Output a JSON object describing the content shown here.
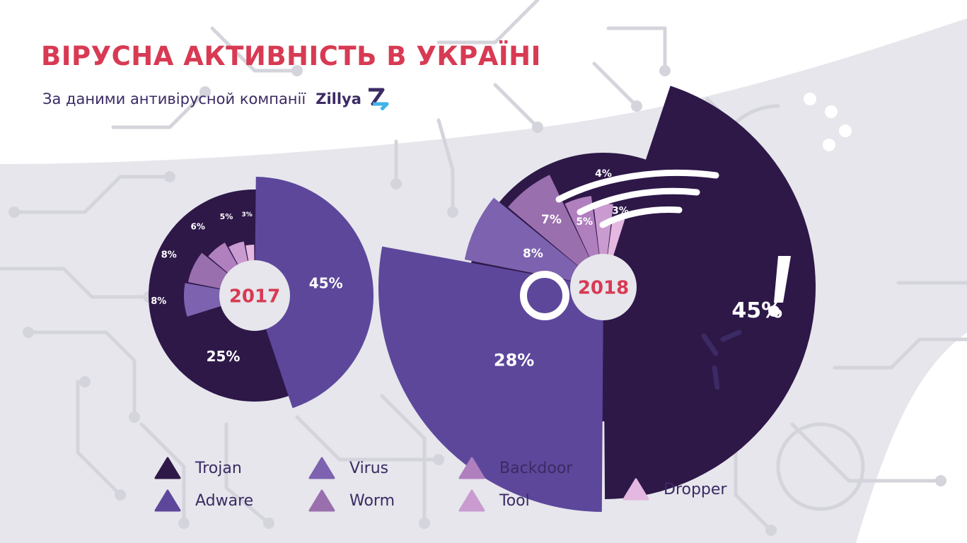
{
  "header": {
    "title": "ВІРУСНА АКТИВНІСТЬ В УКРАЇНІ",
    "subtitle": "За даними антивірусной компанії",
    "brand": "Zillya"
  },
  "colors": {
    "Trojan": "#2e1848",
    "Adware": "#5d479b",
    "Virus": "#7d62b0",
    "Worm": "#9a6fae",
    "Backdoor": "#b07fbe",
    "Tool": "#c99bd0",
    "Dropper": "#e4b8e0",
    "accent": "#d83a53"
  },
  "chart_data": [
    {
      "type": "pie",
      "label": "2017",
      "slices": [
        {
          "name": "Adware",
          "value": 45,
          "label": "45%"
        },
        {
          "name": "Trojan",
          "value": 25,
          "label": "25%"
        },
        {
          "name": "Virus",
          "value": 8,
          "label": "8%"
        },
        {
          "name": "Worm",
          "value": 8,
          "label": "8%"
        },
        {
          "name": "Backdoor",
          "value": 6,
          "label": "6%"
        },
        {
          "name": "Tool",
          "value": 5,
          "label": "5%"
        },
        {
          "name": "Dropper",
          "value": 3,
          "label": "3%"
        }
      ]
    },
    {
      "type": "pie",
      "label": "2018",
      "slices": [
        {
          "name": "Trojan",
          "value": 45,
          "label": "45%"
        },
        {
          "name": "Adware",
          "value": 28,
          "label": "28%"
        },
        {
          "name": "Virus",
          "value": 8,
          "label": "8%"
        },
        {
          "name": "Worm",
          "value": 7,
          "label": "7%"
        },
        {
          "name": "Backdoor",
          "value": 5,
          "label": "5%"
        },
        {
          "name": "Tool",
          "value": 4,
          "label": "4%"
        },
        {
          "name": "Dropper",
          "value": 3,
          "label": "3%"
        }
      ]
    }
  ],
  "legend": {
    "items": [
      "Trojan",
      "Adware",
      "Virus",
      "Worm",
      "Backdoor",
      "Tool",
      "Dropper"
    ]
  }
}
